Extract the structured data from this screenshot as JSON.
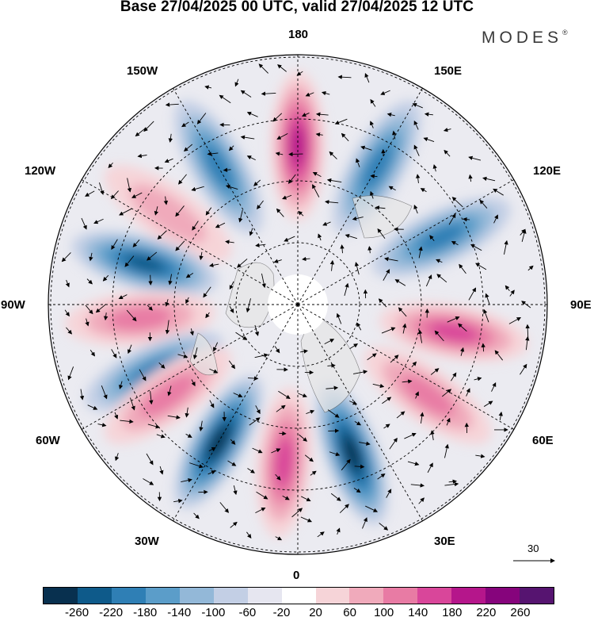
{
  "title": "Base 27/04/2025 00 UTC, valid 27/04/2025 12 UTC",
  "brand": {
    "name": "MODES",
    "mark": "®"
  },
  "meridian_labels": {
    "top": "180",
    "bottom": "0",
    "left": "90W",
    "right": "90E",
    "upper_left_1": "150W",
    "upper_left_2": "120W",
    "upper_right_1": "150E",
    "upper_right_2": "120E",
    "lower_left_1": "60W",
    "lower_left_2": "30W",
    "lower_right_1": "60E",
    "lower_right_2": "30E"
  },
  "wind_reference": {
    "value": "30"
  },
  "colorbar": {
    "ticks": [
      "-260",
      "-220",
      "-180",
      "-140",
      "-100",
      "-60",
      "-20",
      "20",
      "60",
      "100",
      "140",
      "180",
      "220",
      "260"
    ],
    "colors": [
      "#08304f",
      "#0e5a8a",
      "#2f7fb5",
      "#5b9dc9",
      "#93b8d8",
      "#c3cfe5",
      "#e6e6f0",
      "#ffffff",
      "#f6d4d8",
      "#f0aabb",
      "#e87ba4",
      "#d9469a",
      "#b5168b",
      "#86047c",
      "#561470"
    ]
  },
  "anomaly_centers": [
    {
      "lon": 180,
      "sign": "positive",
      "strength": 0.9
    },
    {
      "lon": -150,
      "sign": "negative",
      "strength": 0.7
    },
    {
      "lon": -125,
      "sign": "positive",
      "strength": 0.4
    },
    {
      "lon": -105,
      "sign": "negative",
      "strength": 0.8
    },
    {
      "lon": -85,
      "sign": "positive",
      "strength": 0.5
    },
    {
      "lon": -65,
      "sign": "negative",
      "strength": 0.6
    },
    {
      "lon": -55,
      "sign": "positive",
      "strength": 0.5
    },
    {
      "lon": -30,
      "sign": "negative",
      "strength": 0.95
    },
    {
      "lon": -5,
      "sign": "positive",
      "strength": 0.8
    },
    {
      "lon": 20,
      "sign": "negative",
      "strength": 0.95
    },
    {
      "lon": 55,
      "sign": "positive",
      "strength": 0.5
    },
    {
      "lon": 80,
      "sign": "positive",
      "strength": 0.8
    },
    {
      "lon": 115,
      "sign": "negative",
      "strength": 0.6
    },
    {
      "lon": 150,
      "sign": "negative",
      "strength": 0.6
    }
  ]
}
